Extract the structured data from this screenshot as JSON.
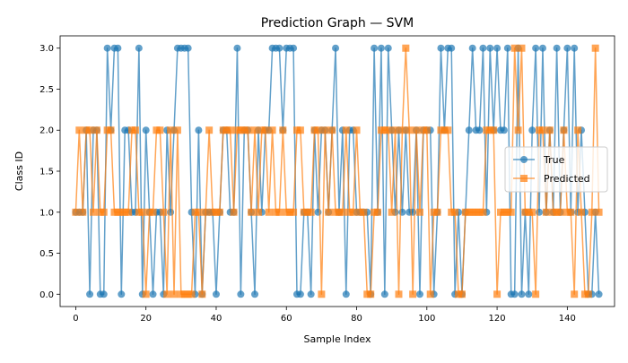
{
  "chart_data": {
    "type": "line",
    "title": "Prediction Graph — SVM",
    "xlabel": "Sample Index",
    "ylabel": "Class ID",
    "xlim": [
      -4.45,
      153.45
    ],
    "ylim": [
      -0.15,
      3.15
    ],
    "xticks": [
      0,
      20,
      40,
      60,
      80,
      100,
      120,
      140
    ],
    "yticks": [
      0.0,
      0.5,
      1.0,
      1.5,
      2.0,
      2.5,
      3.0
    ],
    "ytick_labels": [
      "0.0",
      "0.5",
      "1.0",
      "1.5",
      "2.0",
      "2.5",
      "3.0"
    ],
    "grid": false,
    "legend_position": "center-right",
    "x": [
      0,
      1,
      2,
      3,
      4,
      5,
      6,
      7,
      8,
      9,
      10,
      11,
      12,
      13,
      14,
      15,
      16,
      17,
      18,
      19,
      20,
      21,
      22,
      23,
      24,
      25,
      26,
      27,
      28,
      29,
      30,
      31,
      32,
      33,
      34,
      35,
      36,
      37,
      38,
      39,
      40,
      41,
      42,
      43,
      44,
      45,
      46,
      47,
      48,
      49,
      50,
      51,
      52,
      53,
      54,
      55,
      56,
      57,
      58,
      59,
      60,
      61,
      62,
      63,
      64,
      65,
      66,
      67,
      68,
      69,
      70,
      71,
      72,
      73,
      74,
      75,
      76,
      77,
      78,
      79,
      80,
      81,
      82,
      83,
      84,
      85,
      86,
      87,
      88,
      89,
      90,
      91,
      92,
      93,
      94,
      95,
      96,
      97,
      98,
      99,
      100,
      101,
      102,
      103,
      104,
      105,
      106,
      107,
      108,
      109,
      110,
      111,
      112,
      113,
      114,
      115,
      116,
      117,
      118,
      119,
      120,
      121,
      122,
      123,
      124,
      125,
      126,
      127,
      128,
      129,
      130,
      131,
      132,
      133,
      134,
      135,
      136,
      137,
      138,
      139,
      140,
      141,
      142,
      143,
      144,
      145,
      146,
      147,
      148,
      149
    ],
    "series": [
      {
        "name": "True",
        "color": "#1f77b4",
        "marker": "circle",
        "values": [
          1,
          1,
          1,
          2,
          0,
          2,
          2,
          0,
          0,
          3,
          2,
          3,
          3,
          0,
          2,
          2,
          1,
          1,
          3,
          0,
          2,
          1,
          0,
          1,
          1,
          0,
          2,
          1,
          2,
          3,
          3,
          3,
          3,
          1,
          0,
          2,
          0,
          1,
          1,
          1,
          0,
          1,
          2,
          2,
          1,
          1,
          3,
          0,
          2,
          2,
          1,
          0,
          2,
          1,
          2,
          2,
          3,
          3,
          3,
          2,
          3,
          3,
          3,
          0,
          0,
          1,
          1,
          0,
          2,
          1,
          2,
          2,
          1,
          2,
          3,
          1,
          2,
          0,
          2,
          2,
          1,
          1,
          1,
          1,
          0,
          3,
          1,
          3,
          0,
          3,
          2,
          1,
          2,
          1,
          2,
          1,
          1,
          2,
          0,
          2,
          2,
          2,
          0,
          1,
          3,
          2,
          3,
          3,
          0,
          1,
          0,
          1,
          2,
          3,
          2,
          2,
          3,
          1,
          3,
          2,
          3,
          2,
          2,
          3,
          0,
          0,
          3,
          0,
          1,
          0,
          2,
          3,
          1,
          3,
          1,
          2,
          1,
          3,
          1,
          2,
          3,
          1,
          3,
          1,
          2,
          1,
          0,
          0,
          1,
          0
        ]
      },
      {
        "name": "Predicted",
        "color": "#ff7f0e",
        "marker": "square",
        "values": [
          1,
          2,
          1,
          2,
          2,
          1,
          2,
          1,
          1,
          2,
          2,
          1,
          1,
          1,
          1,
          1,
          2,
          2,
          1,
          1,
          0,
          1,
          1,
          2,
          2,
          1,
          0,
          2,
          0,
          2,
          0,
          0,
          0,
          0,
          1,
          1,
          0,
          1,
          2,
          1,
          1,
          1,
          2,
          2,
          2,
          1,
          2,
          2,
          2,
          2,
          1,
          2,
          1,
          2,
          2,
          1,
          2,
          1,
          1,
          2,
          1,
          1,
          1,
          2,
          2,
          1,
          1,
          1,
          2,
          2,
          0,
          2,
          1,
          2,
          1,
          1,
          1,
          2,
          1,
          1,
          2,
          1,
          1,
          0,
          0,
          1,
          1,
          2,
          2,
          2,
          1,
          2,
          0,
          2,
          3,
          2,
          0,
          2,
          1,
          2,
          2,
          0,
          1,
          1,
          2,
          2,
          2,
          1,
          1,
          0,
          0,
          1,
          1,
          1,
          1,
          1,
          1,
          2,
          2,
          2,
          0,
          1,
          1,
          1,
          1,
          3,
          2,
          3,
          1,
          1,
          1,
          0,
          2,
          2,
          1,
          2,
          1,
          1,
          1,
          2,
          1,
          1,
          0,
          2,
          1,
          0,
          0,
          1,
          3,
          1
        ]
      }
    ]
  }
}
